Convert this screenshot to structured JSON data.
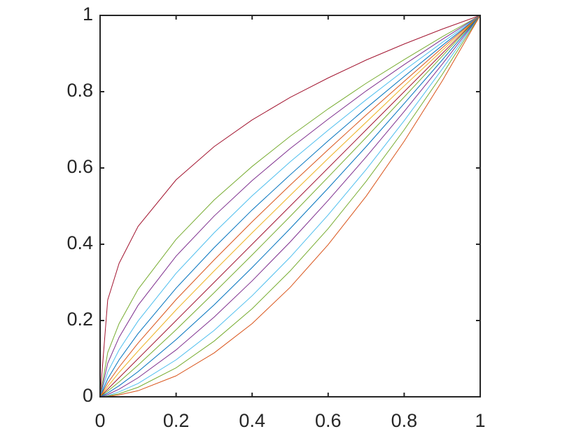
{
  "chart_data": {
    "type": "line",
    "x": [
      0,
      0.02,
      0.05,
      0.1,
      0.2,
      0.3,
      0.4,
      0.5,
      0.6,
      0.7,
      0.8,
      0.9,
      1
    ],
    "series": [
      {
        "color": "#A2142F",
        "values": [
          0,
          0.254,
          0.35,
          0.447,
          0.569,
          0.656,
          0.726,
          0.785,
          0.836,
          0.883,
          0.925,
          0.964,
          1
        ]
      },
      {
        "color": "#77AC30",
        "values": [
          0,
          0.116,
          0.192,
          0.282,
          0.413,
          0.516,
          0.604,
          0.683,
          0.755,
          0.822,
          0.884,
          0.944,
          1
        ]
      },
      {
        "color": "#7E2F8E",
        "values": [
          0,
          0.088,
          0.156,
          0.24,
          0.369,
          0.474,
          0.567,
          0.651,
          0.728,
          0.802,
          0.871,
          0.937,
          1
        ]
      },
      {
        "color": "#4DBEEE",
        "values": [
          0,
          0.065,
          0.123,
          0.199,
          0.324,
          0.43,
          0.527,
          0.616,
          0.699,
          0.779,
          0.856,
          0.929,
          1
        ]
      },
      {
        "color": "#0072BD",
        "values": [
          0,
          0.047,
          0.097,
          0.166,
          0.285,
          0.391,
          0.49,
          0.582,
          0.671,
          0.757,
          0.84,
          0.921,
          1
        ]
      },
      {
        "color": "#D95319",
        "values": [
          0,
          0.036,
          0.078,
          0.141,
          0.255,
          0.359,
          0.459,
          0.555,
          0.648,
          0.739,
          0.827,
          0.915,
          1
        ]
      },
      {
        "color": "#EDB120",
        "values": [
          0,
          0.027,
          0.064,
          0.12,
          0.228,
          0.33,
          0.43,
          0.528,
          0.625,
          0.72,
          0.815,
          0.908,
          1
        ]
      },
      {
        "color": "#A2142F",
        "values": [
          0,
          0.02,
          0.05,
          0.1,
          0.2,
          0.3,
          0.4,
          0.5,
          0.6,
          0.7,
          0.8,
          0.9,
          1
        ]
      },
      {
        "color": "#77AC30",
        "values": [
          0,
          0.015,
          0.039,
          0.083,
          0.176,
          0.273,
          0.372,
          0.473,
          0.576,
          0.68,
          0.786,
          0.893,
          1
        ]
      },
      {
        "color": "#0072BD",
        "values": [
          0,
          0.01,
          0.029,
          0.066,
          0.15,
          0.241,
          0.339,
          0.441,
          0.547,
          0.656,
          0.769,
          0.883,
          1
        ]
      },
      {
        "color": "#7E2F8E",
        "values": [
          0,
          0.006,
          0.02,
          0.05,
          0.123,
          0.209,
          0.304,
          0.406,
          0.515,
          0.629,
          0.748,
          0.872,
          1
        ]
      },
      {
        "color": "#4DBEEE",
        "values": [
          0,
          0.003,
          0.013,
          0.035,
          0.097,
          0.174,
          0.265,
          0.366,
          0.477,
          0.596,
          0.724,
          0.859,
          1
        ]
      },
      {
        "color": "#77AC30",
        "values": [
          0,
          0.002,
          0.008,
          0.025,
          0.076,
          0.146,
          0.231,
          0.33,
          0.441,
          0.565,
          0.7,
          0.845,
          1
        ]
      },
      {
        "color": "#D95319",
        "values": [
          0,
          0.001,
          0.005,
          0.016,
          0.055,
          0.115,
          0.192,
          0.287,
          0.399,
          0.526,
          0.67,
          0.828,
          1
        ]
      }
    ],
    "xlim": [
      0,
      1
    ],
    "ylim": [
      0,
      1
    ],
    "xticks": [
      0,
      0.2,
      0.4,
      0.6,
      0.8,
      1
    ],
    "yticks": [
      0,
      0.2,
      0.4,
      0.6,
      0.8,
      1
    ],
    "grid": false
  }
}
